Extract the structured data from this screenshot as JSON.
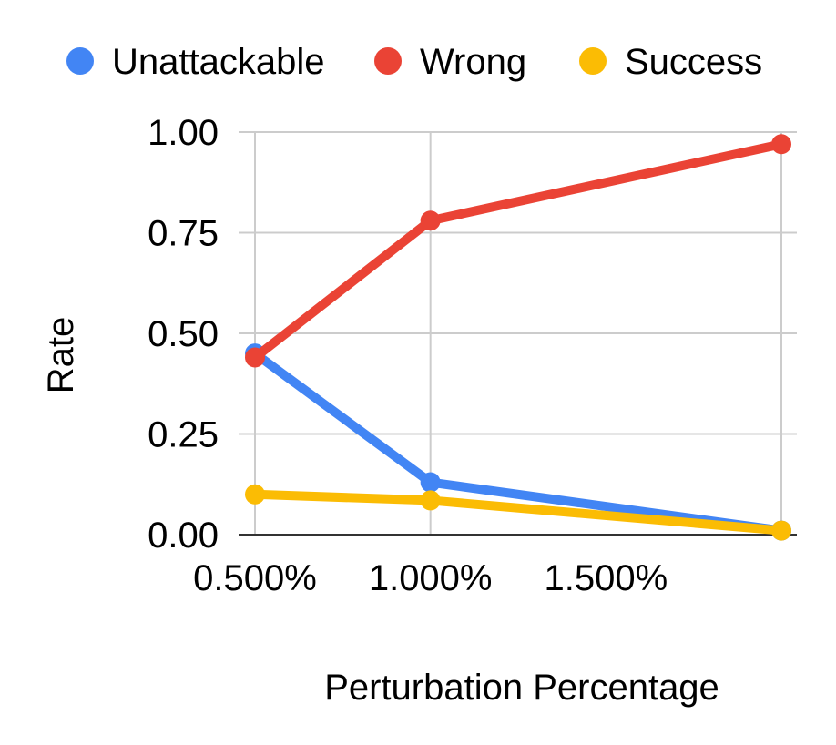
{
  "chart_data": {
    "type": "line",
    "title": "",
    "xlabel": "Perturbation Percentage",
    "ylabel": "Rate",
    "x": [
      0.5,
      1.0,
      2.0
    ],
    "x_ticks": [
      0.5,
      1.0,
      1.5
    ],
    "x_tick_labels": [
      "0.500%",
      "1.000%",
      "1.500%"
    ],
    "xlim": [
      0.5,
      2.0
    ],
    "y_ticks": [
      0,
      0.25,
      0.5,
      0.75,
      1.0
    ],
    "y_tick_labels": [
      "0.00",
      "0.25",
      "0.50",
      "0.75",
      "1.00"
    ],
    "ylim": [
      0,
      1.0
    ],
    "grid": true,
    "legend_position": "top",
    "series": [
      {
        "name": "Unattackable",
        "color": "#4285F4",
        "values": [
          0.45,
          0.13,
          0.01
        ]
      },
      {
        "name": "Wrong",
        "color": "#EA4335",
        "values": [
          0.44,
          0.78,
          0.97
        ]
      },
      {
        "name": "Success",
        "color": "#FBBC04",
        "values": [
          0.1,
          0.085,
          0.01
        ]
      }
    ]
  }
}
